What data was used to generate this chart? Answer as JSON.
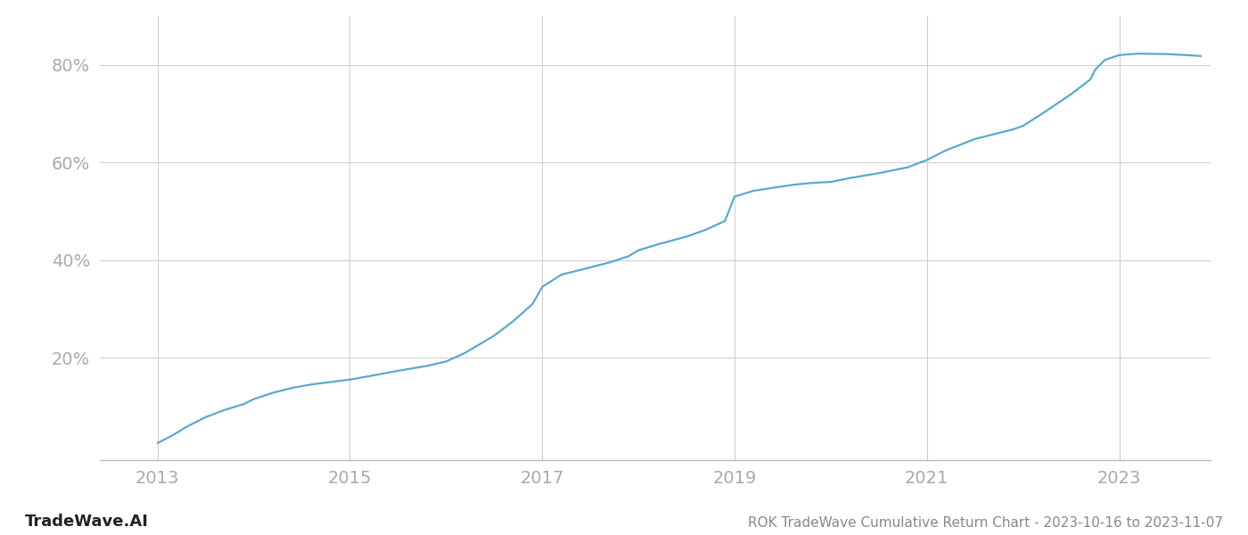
{
  "title": "ROK TradeWave Cumulative Return Chart - 2023-10-16 to 2023-11-07",
  "watermark": "TradeWave.AI",
  "line_color": "#5ba8d0",
  "background_color": "#ffffff",
  "grid_color": "#cccccc",
  "x_ticks": [
    2013,
    2015,
    2017,
    2019,
    2021,
    2023
  ],
  "y_ticks": [
    0.2,
    0.4,
    0.6,
    0.8
  ],
  "y_tick_labels": [
    "20%",
    "40%",
    "60%",
    "80%"
  ],
  "xlim": [
    2012.4,
    2023.95
  ],
  "ylim": [
    -0.01,
    0.9
  ],
  "title_fontsize": 11,
  "watermark_fontsize": 13,
  "tick_fontsize": 14,
  "tick_color": "#aaaaaa",
  "title_color": "#888888",
  "watermark_color": "#222222",
  "line_width": 1.6,
  "x_data": [
    2013.0,
    2013.15,
    2013.3,
    2013.5,
    2013.7,
    2013.9,
    2014.0,
    2014.2,
    2014.4,
    2014.6,
    2014.8,
    2015.0,
    2015.2,
    2015.5,
    2015.8,
    2016.0,
    2016.2,
    2016.5,
    2016.7,
    2016.9,
    2017.0,
    2017.2,
    2017.5,
    2017.7,
    2017.9,
    2018.0,
    2018.2,
    2018.5,
    2018.7,
    2018.9,
    2019.0,
    2019.1,
    2019.2,
    2019.4,
    2019.6,
    2019.8,
    2020.0,
    2020.2,
    2020.5,
    2020.8,
    2021.0,
    2021.2,
    2021.5,
    2021.7,
    2021.9,
    2022.0,
    2022.2,
    2022.5,
    2022.7,
    2022.75,
    2022.85,
    2023.0,
    2023.2,
    2023.5,
    2023.7,
    2023.85
  ],
  "y_data": [
    0.025,
    0.04,
    0.058,
    0.078,
    0.093,
    0.105,
    0.115,
    0.128,
    0.138,
    0.145,
    0.15,
    0.155,
    0.162,
    0.173,
    0.183,
    0.192,
    0.21,
    0.245,
    0.275,
    0.31,
    0.345,
    0.37,
    0.385,
    0.395,
    0.408,
    0.42,
    0.432,
    0.448,
    0.462,
    0.48,
    0.53,
    0.536,
    0.542,
    0.548,
    0.554,
    0.558,
    0.56,
    0.568,
    0.578,
    0.59,
    0.605,
    0.625,
    0.648,
    0.658,
    0.668,
    0.675,
    0.7,
    0.74,
    0.77,
    0.79,
    0.81,
    0.82,
    0.823,
    0.822,
    0.82,
    0.818
  ]
}
